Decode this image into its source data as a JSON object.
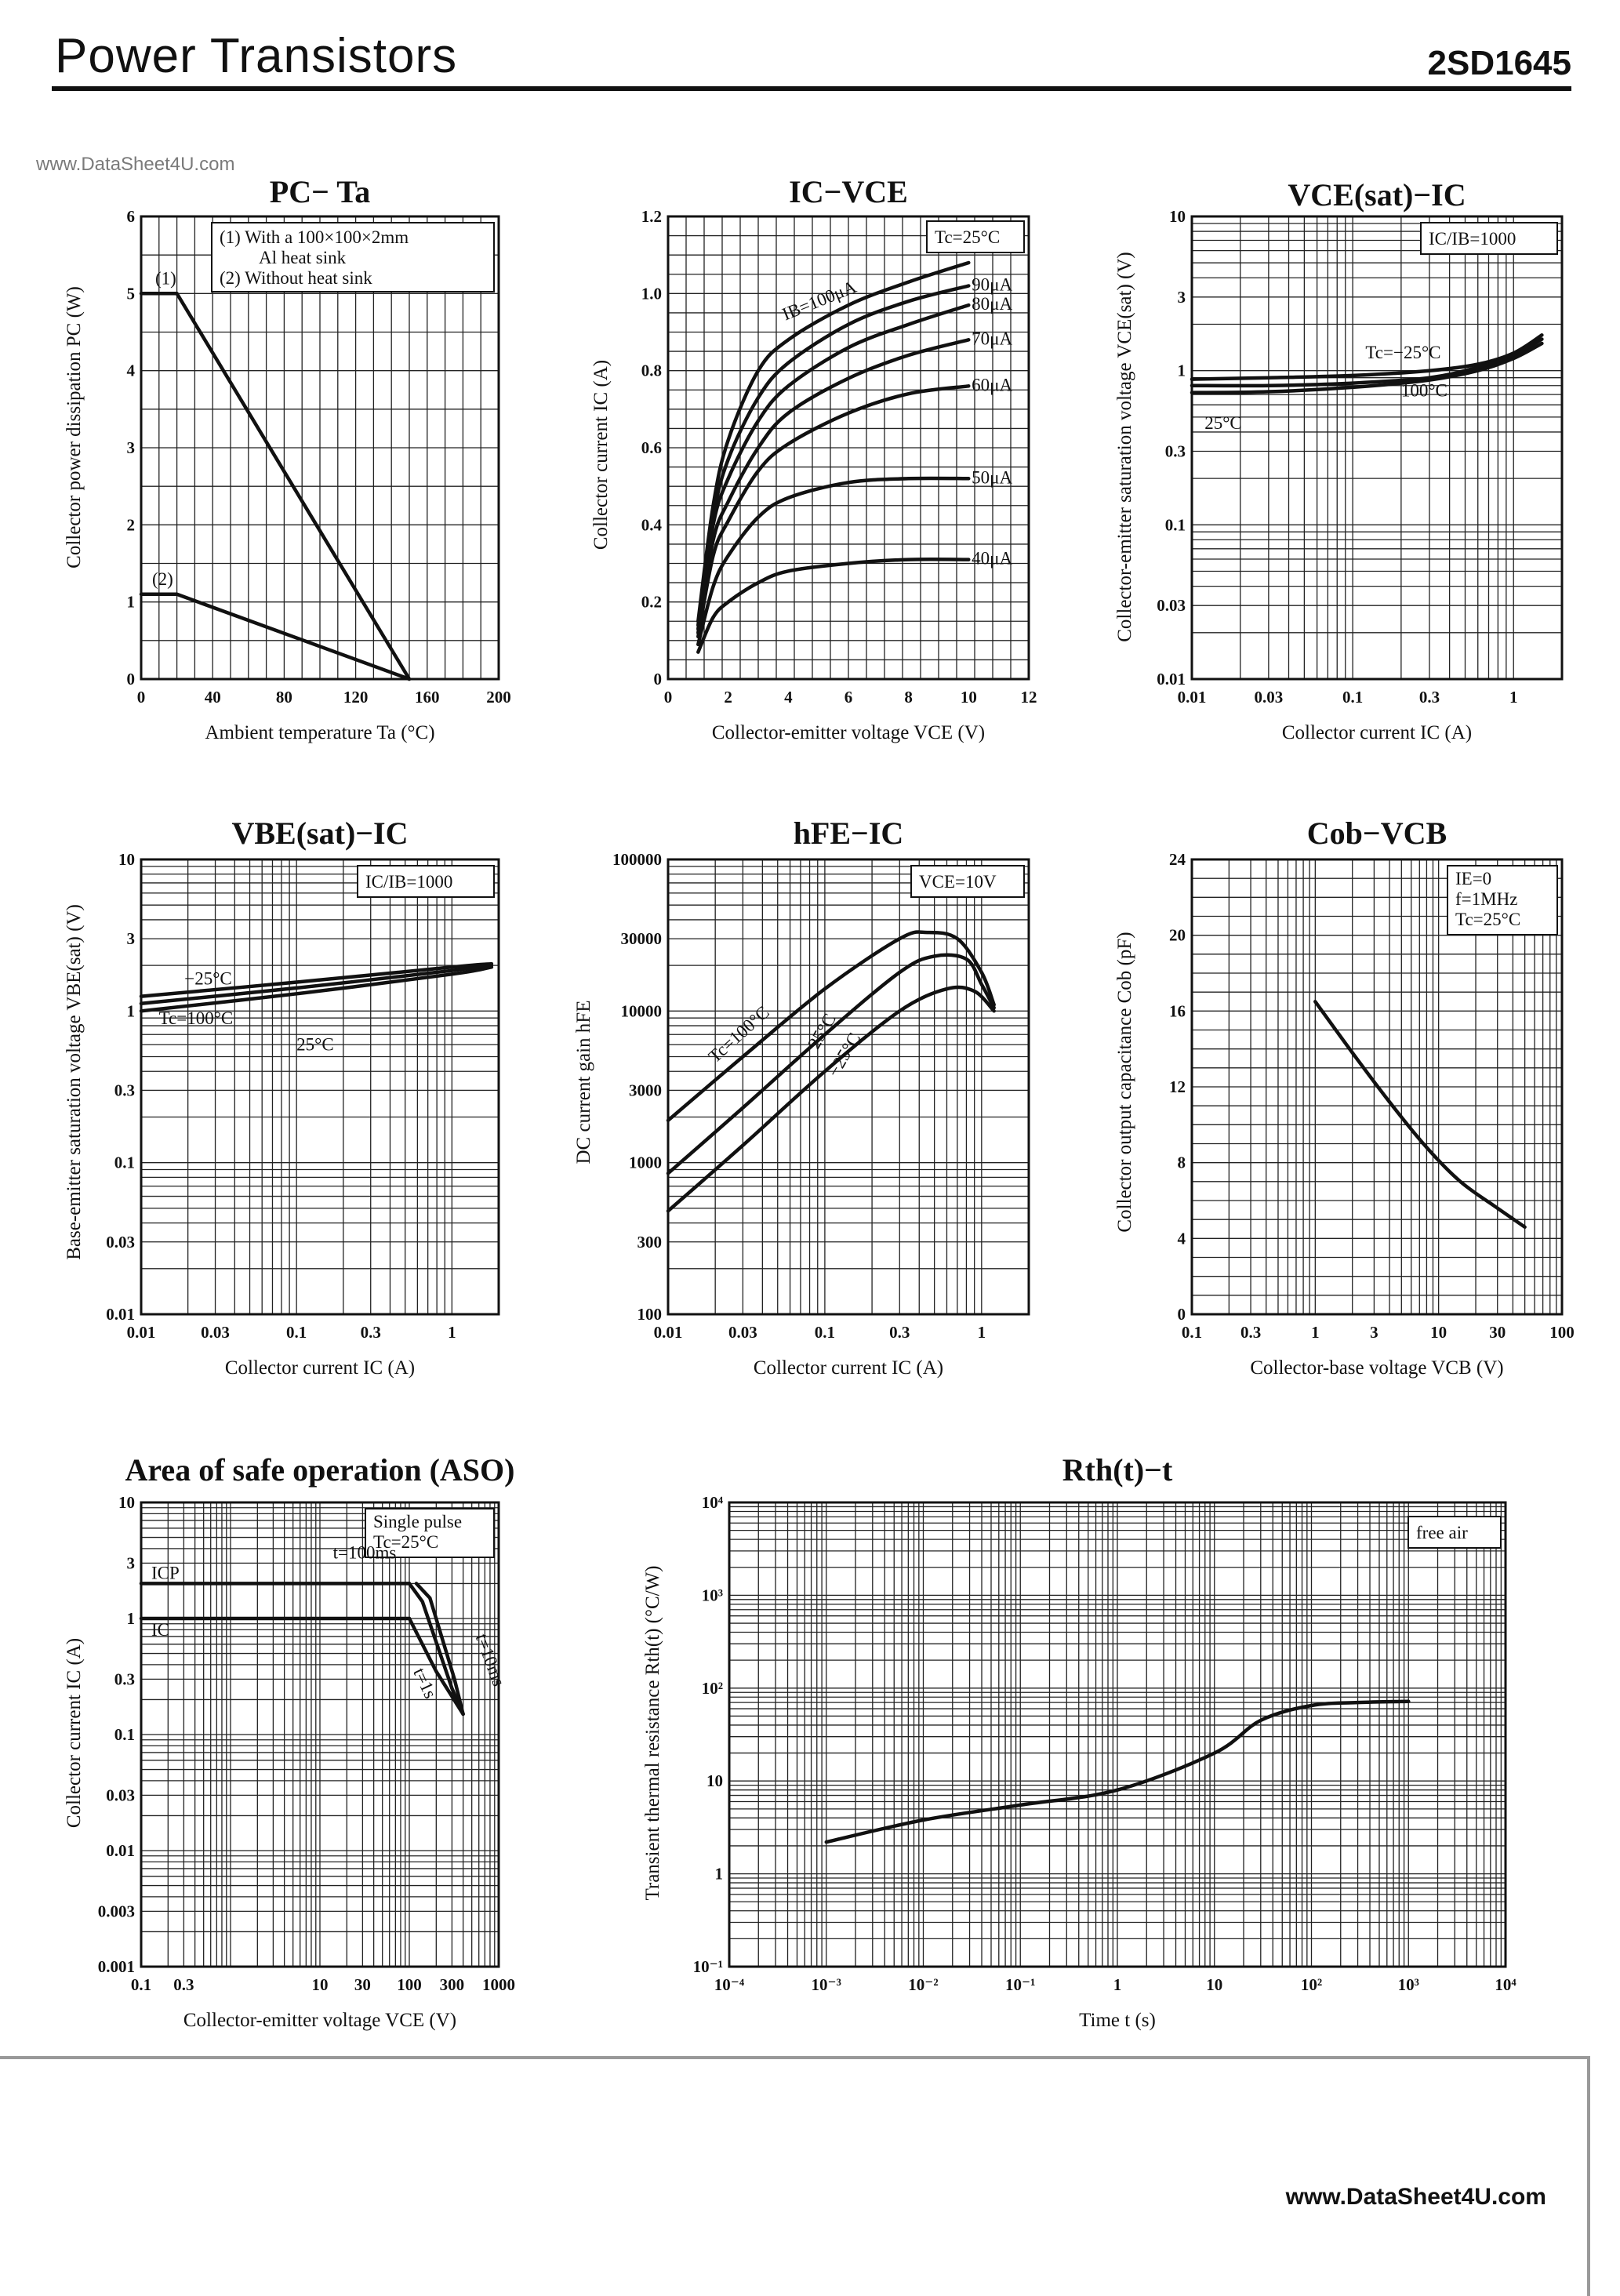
{
  "header": {
    "title": "Power Transistors",
    "part_number": "2SD1645"
  },
  "watermark_top": "www.DataSheet4U.com",
  "watermark_bottom": "www.DataSheet4U.com",
  "chart_data": [
    {
      "id": "pc-ta",
      "type": "line",
      "title": "PC− Ta",
      "xlabel": "Ambient temperature Ta (°C)",
      "ylabel": "Collector power dissipation PC (W)",
      "xscale": "linear",
      "yscale": "linear",
      "xlim": [
        0,
        200
      ],
      "ylim": [
        0,
        6
      ],
      "xticks": [
        0,
        40,
        80,
        120,
        160,
        200
      ],
      "xtick_labels": [
        "0",
        "40",
        "80",
        "120",
        "160",
        "200"
      ],
      "yticks": [
        0,
        1,
        2,
        3,
        4,
        5,
        6
      ],
      "ytick_labels": [
        "0",
        "1",
        "2",
        "3",
        "4",
        "5",
        "6"
      ],
      "notes": [
        "(1)  With a 100×100×2mm",
        "Al heat sink",
        "(2)  Without heat sink"
      ],
      "series": [
        {
          "name": "(1)",
          "x": [
            0,
            20,
            150
          ],
          "y": [
            5,
            5,
            0
          ]
        },
        {
          "name": "(2)",
          "x": [
            0,
            20,
            150
          ],
          "y": [
            1.1,
            1.1,
            0
          ]
        }
      ]
    },
    {
      "id": "ic-vce",
      "type": "line",
      "title": "IC−VCE",
      "xlabel": "Collector-emitter voltage VCE (V)",
      "ylabel": "Collector current IC (A)",
      "xscale": "linear",
      "yscale": "linear",
      "xlim": [
        0,
        12
      ],
      "ylim": [
        0,
        1.2
      ],
      "xticks": [
        0,
        2,
        4,
        6,
        8,
        10,
        12
      ],
      "xtick_labels": [
        "0",
        "2",
        "4",
        "6",
        "8",
        "10",
        "12"
      ],
      "yticks": [
        0,
        0.2,
        0.4,
        0.6,
        0.8,
        1.0,
        1.2
      ],
      "ytick_labels": [
        "0",
        "0.2",
        "0.4",
        "0.6",
        "0.8",
        "1.0",
        "1.2"
      ],
      "condition": "Tc=25°C",
      "series": [
        {
          "name": "IB=100μA",
          "x": [
            1,
            1.5,
            2,
            3,
            4,
            6,
            8,
            10
          ],
          "y": [
            0.15,
            0.45,
            0.62,
            0.8,
            0.88,
            0.97,
            1.03,
            1.08
          ]
        },
        {
          "name": "90μA",
          "x": [
            1,
            1.5,
            2,
            3,
            4,
            6,
            8,
            10
          ],
          "y": [
            0.14,
            0.42,
            0.57,
            0.73,
            0.82,
            0.92,
            0.98,
            1.02
          ]
        },
        {
          "name": "80μA",
          "x": [
            1,
            1.5,
            2,
            3,
            4,
            6,
            8,
            10
          ],
          "y": [
            0.13,
            0.4,
            0.52,
            0.67,
            0.76,
            0.86,
            0.92,
            0.97
          ]
        },
        {
          "name": "70μA",
          "x": [
            1,
            1.5,
            2,
            3,
            4,
            6,
            8,
            10
          ],
          "y": [
            0.12,
            0.36,
            0.46,
            0.6,
            0.69,
            0.78,
            0.84,
            0.88
          ]
        },
        {
          "name": "60μA",
          "x": [
            1,
            1.5,
            2,
            3,
            4,
            6,
            8,
            10
          ],
          "y": [
            0.11,
            0.32,
            0.41,
            0.54,
            0.61,
            0.69,
            0.74,
            0.76
          ]
        },
        {
          "name": "50μA",
          "x": [
            1,
            1.5,
            2,
            3,
            4,
            6,
            8,
            10
          ],
          "y": [
            0.09,
            0.24,
            0.32,
            0.42,
            0.47,
            0.51,
            0.52,
            0.52
          ]
        },
        {
          "name": "40μA",
          "x": [
            1,
            1.5,
            2,
            3,
            4,
            6,
            8,
            10
          ],
          "y": [
            0.07,
            0.16,
            0.2,
            0.25,
            0.28,
            0.3,
            0.31,
            0.31
          ]
        }
      ]
    },
    {
      "id": "vcesat-ic",
      "type": "line",
      "title": "VCE(sat)−IC",
      "xlabel": "Collector current IC (A)",
      "ylabel": "Collector-emitter saturation voltage VCE(sat) (V)",
      "xscale": "log",
      "yscale": "log",
      "xlim": [
        0.01,
        2
      ],
      "ylim": [
        0.01,
        10
      ],
      "xticks": [
        0.01,
        0.03,
        0.1,
        0.3,
        1
      ],
      "xtick_labels": [
        "0.01",
        "0.03",
        "0.1",
        "0.3",
        "1"
      ],
      "yticks": [
        0.01,
        0.03,
        0.1,
        0.3,
        1,
        3,
        10
      ],
      "ytick_labels": [
        "0.01",
        "0.03",
        "0.1",
        "0.3",
        "1",
        "3",
        "10"
      ],
      "condition": "IC/IB=1000",
      "series": [
        {
          "name": "Tc=−25°C",
          "x": [
            0.01,
            0.03,
            0.1,
            0.3,
            0.6,
            1,
            1.5
          ],
          "y": [
            0.88,
            0.9,
            0.93,
            1.0,
            1.1,
            1.3,
            1.7
          ]
        },
        {
          "name": "100°C",
          "x": [
            0.01,
            0.03,
            0.1,
            0.3,
            0.6,
            1,
            1.5
          ],
          "y": [
            0.8,
            0.8,
            0.83,
            0.9,
            1.05,
            1.25,
            1.6
          ]
        },
        {
          "name": "25°C",
          "x": [
            0.01,
            0.03,
            0.1,
            0.3,
            0.6,
            1,
            1.5
          ],
          "y": [
            0.72,
            0.73,
            0.78,
            0.87,
            1.0,
            1.2,
            1.5
          ]
        }
      ]
    },
    {
      "id": "vbesat-ic",
      "type": "line",
      "title": "VBE(sat)−IC",
      "xlabel": "Collector current IC (A)",
      "ylabel": "Base-emitter saturation voltage VBE(sat) (V)",
      "xscale": "log",
      "yscale": "log",
      "xlim": [
        0.01,
        2
      ],
      "ylim": [
        0.01,
        10
      ],
      "xticks": [
        0.01,
        0.03,
        0.1,
        0.3,
        1
      ],
      "xtick_labels": [
        "0.01",
        "0.03",
        "0.1",
        "0.3",
        "1"
      ],
      "yticks": [
        0.01,
        0.03,
        0.1,
        0.3,
        1,
        3,
        10
      ],
      "ytick_labels": [
        "0.01",
        "0.03",
        "0.1",
        "0.3",
        "1",
        "3",
        "10"
      ],
      "condition": "IC/IB=1000",
      "series": [
        {
          "name": "−25°C",
          "x": [
            0.01,
            0.1,
            1,
            1.8
          ],
          "y": [
            1.25,
            1.55,
            1.95,
            2.05
          ]
        },
        {
          "name": "Tc=100°C",
          "x": [
            0.01,
            0.1,
            1,
            1.8
          ],
          "y": [
            1.0,
            1.3,
            1.75,
            1.95
          ]
        },
        {
          "name": "25°C",
          "x": [
            0.01,
            0.1,
            1,
            1.8
          ],
          "y": [
            1.12,
            1.42,
            1.85,
            2.0
          ]
        }
      ]
    },
    {
      "id": "hfe-ic",
      "type": "line",
      "title": "hFE−IC",
      "xlabel": "Collector current IC (A)",
      "ylabel": "DC current gain hFE",
      "xscale": "log",
      "yscale": "log",
      "xlim": [
        0.01,
        2
      ],
      "ylim": [
        100,
        100000
      ],
      "xticks": [
        0.01,
        0.03,
        0.1,
        0.3,
        1
      ],
      "xtick_labels": [
        "0.01",
        "0.03",
        "0.1",
        "0.3",
        "1"
      ],
      "yticks": [
        100,
        300,
        1000,
        3000,
        10000,
        30000,
        100000
      ],
      "ytick_labels": [
        "100",
        "300",
        "1000",
        "3000",
        "10000",
        "30000",
        "100000"
      ],
      "condition": "VCE=10V",
      "series": [
        {
          "name": "Tc=100°C",
          "x": [
            0.01,
            0.03,
            0.1,
            0.3,
            0.45,
            0.7,
            1.0,
            1.2
          ],
          "y": [
            1900,
            5000,
            14000,
            30000,
            33000,
            30000,
            18000,
            11000
          ]
        },
        {
          "name": "25°C",
          "x": [
            0.01,
            0.03,
            0.1,
            0.3,
            0.5,
            0.8,
            1.0,
            1.2
          ],
          "y": [
            850,
            2300,
            7000,
            18000,
            23000,
            22000,
            15000,
            10500
          ]
        },
        {
          "name": "−25°C",
          "x": [
            0.01,
            0.03,
            0.1,
            0.3,
            0.6,
            0.9,
            1.2
          ],
          "y": [
            480,
            1300,
            4000,
            10000,
            14000,
            13500,
            10000
          ]
        }
      ]
    },
    {
      "id": "cob-vcb",
      "type": "line",
      "title": "Cob−VCB",
      "xlabel": "Collector-base voltage VCB (V)",
      "ylabel": "Collector output capacitance Cob (pF)",
      "xscale": "log",
      "yscale": "linear",
      "xlim": [
        0.1,
        100
      ],
      "ylim": [
        0,
        24
      ],
      "xticks": [
        0.1,
        0.3,
        1,
        3,
        10,
        30,
        100
      ],
      "xtick_labels": [
        "0.1",
        "0.3",
        "1",
        "3",
        "10",
        "30",
        "100"
      ],
      "yticks": [
        0,
        4,
        8,
        12,
        16,
        20,
        24
      ],
      "ytick_labels": [
        "0",
        "4",
        "8",
        "12",
        "16",
        "20",
        "24"
      ],
      "conditions": [
        "IE=0",
        "f=1MHz",
        "Tc=25°C"
      ],
      "series": [
        {
          "name": "Cob",
          "x": [
            1,
            2,
            4,
            8,
            15,
            30,
            50
          ],
          "y": [
            16.5,
            13.8,
            11.2,
            8.8,
            7.0,
            5.6,
            4.6
          ]
        }
      ]
    },
    {
      "id": "aso",
      "type": "line",
      "title": "Area of safe operation (ASO)",
      "xlabel": "Collector-emitter voltage VCE (V)",
      "ylabel": "Collector current IC (A)",
      "xscale": "log",
      "yscale": "log",
      "xlim": [
        0.1,
        1000
      ],
      "ylim": [
        0.001,
        10
      ],
      "xticks": [
        0.1,
        0.3,
        10,
        30,
        100,
        300,
        1000
      ],
      "xtick_labels": [
        "0.1",
        "0.3",
        "10",
        "30",
        "100",
        "300",
        "1000"
      ],
      "yticks": [
        0.001,
        0.003,
        0.01,
        0.03,
        0.1,
        0.3,
        1,
        3,
        10
      ],
      "ytick_labels": [
        "0.001",
        "0.003",
        "0.01",
        "0.03",
        "0.1",
        "0.3",
        "1",
        "3",
        "10"
      ],
      "conditions": [
        "Single pulse",
        "Tc=25°C"
      ],
      "labels": [
        "ICP",
        "IC",
        "t=100ms",
        "t=1s",
        "t=10ms"
      ],
      "series": [
        {
          "name": "ICP",
          "x": [
            0.1,
            100
          ],
          "y": [
            2,
            2
          ]
        },
        {
          "name": "IC",
          "x": [
            0.1,
            100
          ],
          "y": [
            1,
            1
          ]
        },
        {
          "name": "t=100ms",
          "x": [
            100,
            140,
            300,
            400
          ],
          "y": [
            2,
            1.4,
            0.25,
            0.15
          ]
        },
        {
          "name": "t=10ms",
          "x": [
            120,
            170,
            320,
            400
          ],
          "y": [
            2,
            1.5,
            0.3,
            0.15
          ]
        },
        {
          "name": "t=1s",
          "x": [
            100,
            200,
            400
          ],
          "y": [
            1,
            0.35,
            0.15
          ]
        }
      ]
    },
    {
      "id": "rth-t",
      "type": "line",
      "title": "Rth(t)−t",
      "xlabel": "Time t (s)",
      "ylabel": "Transient thermal resistance Rth(t) (°C/W)",
      "xscale": "log",
      "yscale": "log",
      "xlim": [
        0.0001,
        10000
      ],
      "ylim": [
        0.1,
        10000
      ],
      "xticks": [
        0.0001,
        0.001,
        0.01,
        0.1,
        1,
        10,
        100,
        1000,
        10000
      ],
      "xtick_labels": [
        "10⁻⁴",
        "10⁻³",
        "10⁻²",
        "10⁻¹",
        "1",
        "10",
        "10²",
        "10³",
        "10⁴"
      ],
      "yticks": [
        0.1,
        1,
        10,
        100,
        1000,
        10000
      ],
      "ytick_labels": [
        "10⁻¹",
        "1",
        "10",
        "10²",
        "10³",
        "10⁴"
      ],
      "condition": "free air",
      "series": [
        {
          "name": "Rth",
          "x": [
            0.001,
            0.01,
            0.1,
            1,
            10,
            30,
            100,
            300,
            1000
          ],
          "y": [
            2.2,
            3.8,
            5.5,
            8,
            20,
            45,
            65,
            70,
            72
          ]
        }
      ]
    }
  ]
}
